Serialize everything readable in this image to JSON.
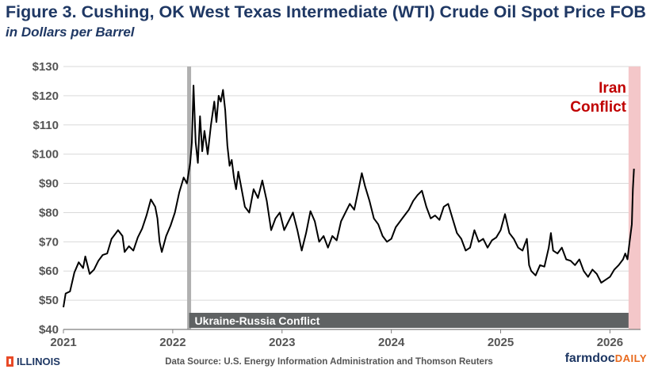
{
  "header": {
    "title": "Figure 3. Cushing, OK West Texas Intermediate (WTI) Crude Oil Spot Price FOB",
    "subtitle": "in Dollars per Barrel"
  },
  "footer": {
    "logo_text": "ILLINOIS",
    "source": "Data Source: U.S. Energy Information Administration and Thomson Reuters",
    "brand_main": "farmdoc",
    "brand_accent": "DAILY"
  },
  "colors": {
    "title": "#1f3864",
    "line": "#000000",
    "ukraine_marker": "#b0b0b0",
    "ukraine_band": "#5f6263",
    "iran_band": "#f4c7c9",
    "iran_text": "#c00000"
  },
  "chart_data": {
    "type": "line",
    "title": "Cushing, OK West Texas Intermediate (WTI) Crude Oil Spot Price FOB",
    "ylabel": "Dollars per Barrel",
    "xlabel": "",
    "xlim": [
      2021.0,
      2026.28
    ],
    "ylim": [
      40,
      130
    ],
    "y_ticks": [
      {
        "value": 40,
        "label": "$40"
      },
      {
        "value": 50,
        "label": "$50"
      },
      {
        "value": 60,
        "label": "$60"
      },
      {
        "value": 70,
        "label": "$70"
      },
      {
        "value": 80,
        "label": "$80"
      },
      {
        "value": 90,
        "label": "$90"
      },
      {
        "value": 100,
        "label": "$100"
      },
      {
        "value": 110,
        "label": "$110"
      },
      {
        "value": 120,
        "label": "$120"
      },
      {
        "value": 130,
        "label": "$130"
      }
    ],
    "x_ticks": [
      {
        "value": 2021,
        "label": "2021"
      },
      {
        "value": 2022,
        "label": "2022"
      },
      {
        "value": 2023,
        "label": "2023"
      },
      {
        "value": 2024,
        "label": "2024"
      },
      {
        "value": 2025,
        "label": "2025"
      },
      {
        "value": 2026,
        "label": "2026"
      }
    ],
    "annotations": [
      {
        "id": "ukraine",
        "label": "Ukraine-Russia Conflict",
        "start": 2022.15
      },
      {
        "id": "iran",
        "label_lines": [
          "Iran",
          "Conflict"
        ],
        "start": 2026.17
      }
    ],
    "series": [
      {
        "name": "WTI Spot Price",
        "points": [
          [
            2021.0,
            47.6
          ],
          [
            2021.02,
            52.3
          ],
          [
            2021.06,
            53.0
          ],
          [
            2021.1,
            59.5
          ],
          [
            2021.14,
            63.0
          ],
          [
            2021.18,
            61.0
          ],
          [
            2021.2,
            65.0
          ],
          [
            2021.24,
            59.0
          ],
          [
            2021.28,
            60.5
          ],
          [
            2021.32,
            63.5
          ],
          [
            2021.36,
            65.5
          ],
          [
            2021.4,
            66.0
          ],
          [
            2021.44,
            71.0
          ],
          [
            2021.48,
            73.0
          ],
          [
            2021.5,
            74.0
          ],
          [
            2021.54,
            72.0
          ],
          [
            2021.56,
            66.5
          ],
          [
            2021.6,
            68.5
          ],
          [
            2021.64,
            67.0
          ],
          [
            2021.68,
            71.5
          ],
          [
            2021.72,
            74.5
          ],
          [
            2021.76,
            79.0
          ],
          [
            2021.8,
            84.5
          ],
          [
            2021.84,
            82.0
          ],
          [
            2021.86,
            78.0
          ],
          [
            2021.88,
            70.0
          ],
          [
            2021.9,
            66.5
          ],
          [
            2021.94,
            72.0
          ],
          [
            2021.98,
            75.5
          ],
          [
            2022.02,
            80.0
          ],
          [
            2022.06,
            87.0
          ],
          [
            2022.1,
            92.0
          ],
          [
            2022.13,
            90.0
          ],
          [
            2022.16,
            97.0
          ],
          [
            2022.175,
            104.0
          ],
          [
            2022.19,
            123.5
          ],
          [
            2022.21,
            104.0
          ],
          [
            2022.23,
            97.0
          ],
          [
            2022.25,
            113.0
          ],
          [
            2022.27,
            101.0
          ],
          [
            2022.29,
            108.0
          ],
          [
            2022.32,
            100.0
          ],
          [
            2022.35,
            110.0
          ],
          [
            2022.38,
            118.0
          ],
          [
            2022.4,
            111.0
          ],
          [
            2022.42,
            120.0
          ],
          [
            2022.44,
            118.0
          ],
          [
            2022.46,
            122.0
          ],
          [
            2022.48,
            115.0
          ],
          [
            2022.5,
            103.0
          ],
          [
            2022.52,
            96.0
          ],
          [
            2022.54,
            98.0
          ],
          [
            2022.56,
            92.0
          ],
          [
            2022.58,
            88.0
          ],
          [
            2022.6,
            94.0
          ],
          [
            2022.62,
            90.0
          ],
          [
            2022.66,
            82.0
          ],
          [
            2022.7,
            80.0
          ],
          [
            2022.74,
            88.0
          ],
          [
            2022.78,
            85.0
          ],
          [
            2022.82,
            91.0
          ],
          [
            2022.86,
            84.0
          ],
          [
            2022.9,
            74.0
          ],
          [
            2022.94,
            78.0
          ],
          [
            2022.98,
            80.0
          ],
          [
            2023.02,
            74.0
          ],
          [
            2023.06,
            77.0
          ],
          [
            2023.1,
            80.0
          ],
          [
            2023.14,
            74.0
          ],
          [
            2023.18,
            67.0
          ],
          [
            2023.22,
            73.0
          ],
          [
            2023.26,
            80.5
          ],
          [
            2023.3,
            77.0
          ],
          [
            2023.34,
            70.0
          ],
          [
            2023.38,
            72.0
          ],
          [
            2023.42,
            68.0
          ],
          [
            2023.46,
            72.0
          ],
          [
            2023.5,
            70.5
          ],
          [
            2023.54,
            77.0
          ],
          [
            2023.58,
            80.0
          ],
          [
            2023.62,
            83.0
          ],
          [
            2023.66,
            81.0
          ],
          [
            2023.7,
            88.0
          ],
          [
            2023.73,
            93.5
          ],
          [
            2023.76,
            89.0
          ],
          [
            2023.8,
            84.0
          ],
          [
            2023.84,
            78.0
          ],
          [
            2023.88,
            76.0
          ],
          [
            2023.92,
            72.0
          ],
          [
            2023.96,
            70.0
          ],
          [
            2024.0,
            71.0
          ],
          [
            2024.04,
            75.0
          ],
          [
            2024.08,
            77.0
          ],
          [
            2024.12,
            79.0
          ],
          [
            2024.16,
            81.0
          ],
          [
            2024.2,
            84.0
          ],
          [
            2024.24,
            86.0
          ],
          [
            2024.28,
            87.5
          ],
          [
            2024.32,
            82.0
          ],
          [
            2024.36,
            78.0
          ],
          [
            2024.4,
            79.0
          ],
          [
            2024.44,
            77.5
          ],
          [
            2024.48,
            82.0
          ],
          [
            2024.52,
            83.0
          ],
          [
            2024.56,
            78.0
          ],
          [
            2024.6,
            73.0
          ],
          [
            2024.64,
            71.0
          ],
          [
            2024.68,
            67.0
          ],
          [
            2024.72,
            68.0
          ],
          [
            2024.76,
            74.0
          ],
          [
            2024.8,
            70.0
          ],
          [
            2024.84,
            71.0
          ],
          [
            2024.88,
            68.0
          ],
          [
            2024.92,
            70.5
          ],
          [
            2024.96,
            71.5
          ],
          [
            2025.0,
            74.0
          ],
          [
            2025.04,
            79.5
          ],
          [
            2025.08,
            73.0
          ],
          [
            2025.12,
            71.0
          ],
          [
            2025.16,
            68.0
          ],
          [
            2025.2,
            67.0
          ],
          [
            2025.24,
            71.0
          ],
          [
            2025.26,
            62.0
          ],
          [
            2025.28,
            60.0
          ],
          [
            2025.32,
            58.5
          ],
          [
            2025.36,
            62.0
          ],
          [
            2025.4,
            61.5
          ],
          [
            2025.44,
            68.0
          ],
          [
            2025.46,
            73.0
          ],
          [
            2025.48,
            67.0
          ],
          [
            2025.52,
            66.0
          ],
          [
            2025.56,
            68.0
          ],
          [
            2025.6,
            64.0
          ],
          [
            2025.64,
            63.5
          ],
          [
            2025.68,
            62.0
          ],
          [
            2025.72,
            64.0
          ],
          [
            2025.76,
            60.0
          ],
          [
            2025.8,
            58.0
          ],
          [
            2025.84,
            60.5
          ],
          [
            2025.88,
            59.0
          ],
          [
            2025.92,
            56.0
          ],
          [
            2025.96,
            57.0
          ],
          [
            2026.0,
            58.0
          ],
          [
            2026.04,
            60.5
          ],
          [
            2026.08,
            62.0
          ],
          [
            2026.12,
            64.0
          ],
          [
            2026.14,
            66.0
          ],
          [
            2026.16,
            64.0
          ],
          [
            2026.18,
            70.0
          ],
          [
            2026.2,
            76.0
          ],
          [
            2026.21,
            88.0
          ],
          [
            2026.22,
            95.0
          ]
        ]
      }
    ]
  }
}
